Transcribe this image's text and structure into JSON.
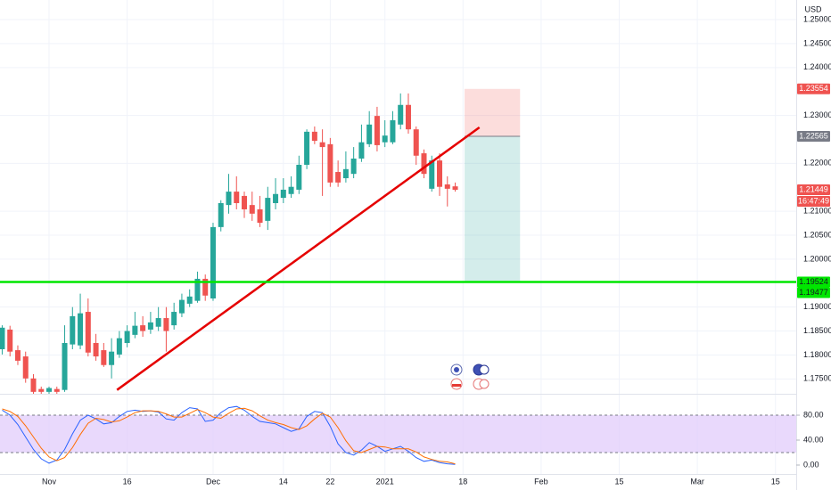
{
  "chart_data": {
    "type": "candlestick",
    "currency": "USD",
    "up_color": "#26a69a",
    "down_color": "#ef5350",
    "grid": true,
    "x": [
      -6,
      -5,
      -4,
      -3,
      -2,
      -1,
      0,
      1,
      2,
      3,
      4,
      5,
      6,
      7,
      8,
      9,
      10,
      11,
      12,
      13,
      14,
      15,
      16,
      17,
      18,
      19,
      20,
      21,
      22,
      23,
      24,
      25,
      26,
      27,
      28,
      29,
      30,
      31,
      32,
      33,
      34,
      35,
      36,
      37,
      38,
      39,
      40,
      41,
      42,
      43,
      44,
      45,
      46,
      47,
      48,
      49,
      50,
      51,
      52
    ],
    "open": [
      1.1812,
      1.1853,
      1.181,
      1.1797,
      1.1751,
      1.1729,
      1.1723,
      1.1729,
      1.1727,
      1.1822,
      1.182,
      1.189,
      1.1825,
      1.181,
      1.1779,
      1.1801,
      1.1825,
      1.1842,
      1.1862,
      1.1853,
      1.1859,
      1.1877,
      1.1862,
      1.1887,
      1.1907,
      1.1913,
      1.1959,
      1.1918,
      1.2067,
      1.2113,
      1.2141,
      1.2132,
      1.2113,
      1.2104,
      1.208,
      1.2117,
      1.2128,
      1.2136,
      1.2145,
      1.2197,
      1.2266,
      1.2244,
      1.224,
      1.2182,
      1.2169,
      1.2178,
      1.221,
      1.224,
      1.2299,
      1.2244,
      1.2244,
      1.2281,
      1.2322,
      1.2271,
      1.2221,
      1.2147,
      1.2206,
      1.2156,
      1.2152
    ],
    "high": [
      1.1862,
      1.1861,
      1.182,
      1.1807,
      1.176,
      1.1734,
      1.1734,
      1.1734,
      1.1862,
      1.19,
      1.1928,
      1.1918,
      1.1844,
      1.1825,
      1.1835,
      1.185,
      1.1862,
      1.189,
      1.1881,
      1.189,
      1.19,
      1.19,
      1.1909,
      1.1928,
      1.1937,
      1.1974,
      1.1968,
      1.2076,
      1.2123,
      1.2178,
      1.2173,
      1.2141,
      1.2141,
      1.2132,
      1.2151,
      1.2169,
      1.2169,
      1.2173,
      1.2216,
      1.2271,
      1.2277,
      1.2271,
      1.2253,
      1.2206,
      1.2225,
      1.2234,
      1.2281,
      1.2309,
      1.2318,
      1.229,
      1.2309,
      1.2346,
      1.2346,
      1.2277,
      1.2229,
      1.2216,
      1.2221,
      1.2173,
      1.216
    ],
    "low": [
      1.1801,
      1.1797,
      1.1779,
      1.1742,
      1.1719,
      1.1719,
      1.1719,
      1.1719,
      1.1723,
      1.1812,
      1.1812,
      1.1797,
      1.1788,
      1.1775,
      1.1751,
      1.1794,
      1.1816,
      1.1835,
      1.1838,
      1.1844,
      1.185,
      1.1807,
      1.1853,
      1.1879,
      1.19,
      1.1909,
      1.1913,
      1.1913,
      1.2058,
      1.2095,
      1.2104,
      1.2086,
      1.208,
      1.2067,
      1.2061,
      1.2104,
      1.2117,
      1.2128,
      1.2136,
      1.2188,
      1.224,
      1.2132,
      1.2151,
      1.2151,
      1.216,
      1.2169,
      1.2203,
      1.2234,
      1.2225,
      1.2234,
      1.224,
      1.2271,
      1.2262,
      1.2197,
      1.2169,
      1.2141,
      1.2132,
      1.211,
      1.2141
    ],
    "close": [
      1.1857,
      1.1807,
      1.1788,
      1.1751,
      1.1723,
      1.1723,
      1.1731,
      1.1723,
      1.1825,
      1.1881,
      1.1887,
      1.1805,
      1.1797,
      1.1779,
      1.1807,
      1.1835,
      1.185,
      1.1861,
      1.185,
      1.1868,
      1.1877,
      1.185,
      1.189,
      1.1915,
      1.1922,
      1.1959,
      1.1924,
      1.2067,
      1.2117,
      1.2141,
      1.2117,
      1.2104,
      1.2095,
      1.2076,
      1.2128,
      1.2136,
      1.2145,
      1.2151,
      1.2197,
      1.2266,
      1.2247,
      1.2234,
      1.216,
      1.216,
      1.2188,
      1.221,
      1.2244,
      1.2281,
      1.2238,
      1.2258,
      1.229,
      1.2322,
      1.2271,
      1.2216,
      1.2178,
      1.2206,
      1.2151,
      1.2147,
      1.21449
    ],
    "xlim": [
      -6.28,
      95.66
    ],
    "xticks": [
      {
        "value": 0,
        "label": "Nov"
      },
      {
        "value": 10,
        "label": "16"
      },
      {
        "value": 21,
        "label": "Dec"
      },
      {
        "value": 30,
        "label": "14"
      },
      {
        "value": 36,
        "label": "22"
      },
      {
        "value": 43,
        "label": "2021"
      },
      {
        "value": 53,
        "label": "18"
      },
      {
        "value": 63,
        "label": "Feb"
      },
      {
        "value": 73,
        "label": "15"
      },
      {
        "value": 83,
        "label": "Mar"
      },
      {
        "value": 93,
        "label": "15"
      }
    ],
    "ylim": [
      1.1719,
      1.2541
    ],
    "yticks": [
      {
        "value": 1.25,
        "label": "1.25000"
      },
      {
        "value": 1.245,
        "label": "1.24500"
      },
      {
        "value": 1.24,
        "label": "1.24000"
      },
      {
        "value": 1.23,
        "label": "1.23000"
      },
      {
        "value": 1.22,
        "label": "1.22000"
      },
      {
        "value": 1.21,
        "label": "1.21000"
      },
      {
        "value": 1.205,
        "label": "1.20500"
      },
      {
        "value": 1.2,
        "label": "1.20000"
      },
      {
        "value": 1.19,
        "label": "1.19000"
      },
      {
        "value": 1.185,
        "label": "1.18500"
      },
      {
        "value": 1.18,
        "label": "1.18000"
      },
      {
        "value": 1.175,
        "label": "1.17500"
      }
    ],
    "price_labels": [
      {
        "value": 1.23554,
        "label": "1.23554",
        "color": "#ef5350",
        "text_color": "#ffffff"
      },
      {
        "value": 1.22565,
        "label": "1.22565",
        "color": "#787b86",
        "text_color": "#ffffff"
      },
      {
        "value": 1.21449,
        "label": "1.21449",
        "color": "#ef5350",
        "text_color": "#ffffff"
      },
      {
        "value": 1.19524,
        "label": "1.19524",
        "color": "#00e600",
        "text_color": "#131722"
      },
      {
        "value": 1.19477,
        "label": "1.19477",
        "color": "#00e600",
        "text_color": "#131722"
      }
    ],
    "countdown": "16:47:49",
    "trend_line": {
      "color": "#e50000",
      "x": [
        8.7,
        55.1
      ],
      "y": [
        1.1727,
        1.2275
      ]
    },
    "horizontal_line": {
      "color": "#00e600",
      "value": 1.19524
    },
    "position": {
      "x": [
        53.2,
        60.3
      ],
      "stop": 1.23554,
      "entry": 1.22565,
      "target": 1.19524
    },
    "stochastic": {
      "ylim": [
        -14.3,
        112.9
      ],
      "yticks": [
        {
          "value": 80,
          "label": "80.00"
        },
        {
          "value": 40,
          "label": "40.00"
        },
        {
          "value": 0,
          "label": "0.00"
        }
      ],
      "band": [
        20,
        80
      ],
      "band_color": "#e1ccfb",
      "series": [
        {
          "color": "#2962ff",
          "values": [
            88,
            80,
            65,
            45,
            25,
            10,
            3,
            8,
            25,
            50,
            72,
            80,
            74,
            66,
            68,
            78,
            86,
            88,
            86,
            87,
            85,
            74,
            72,
            84,
            92,
            90,
            70,
            72,
            84,
            92,
            94,
            88,
            78,
            70,
            68,
            66,
            60,
            54,
            58,
            78,
            86,
            84,
            62,
            34,
            20,
            16,
            24,
            36,
            30,
            22,
            26,
            30,
            22,
            12,
            6,
            8,
            4,
            2,
            1
          ]
        },
        {
          "color": "#ff6d00",
          "values": [
            90,
            86,
            78,
            63,
            45,
            27,
            13,
            7,
            12,
            28,
            49,
            67,
            75,
            73,
            69,
            71,
            77,
            84,
            87,
            87,
            86,
            82,
            77,
            77,
            83,
            89,
            84,
            77,
            75,
            83,
            90,
            91,
            87,
            79,
            72,
            68,
            65,
            60,
            57,
            63,
            74,
            83,
            77,
            60,
            39,
            23,
            20,
            25,
            30,
            29,
            26,
            26,
            26,
            21,
            13,
            9,
            6,
            5,
            2
          ]
        }
      ]
    }
  }
}
